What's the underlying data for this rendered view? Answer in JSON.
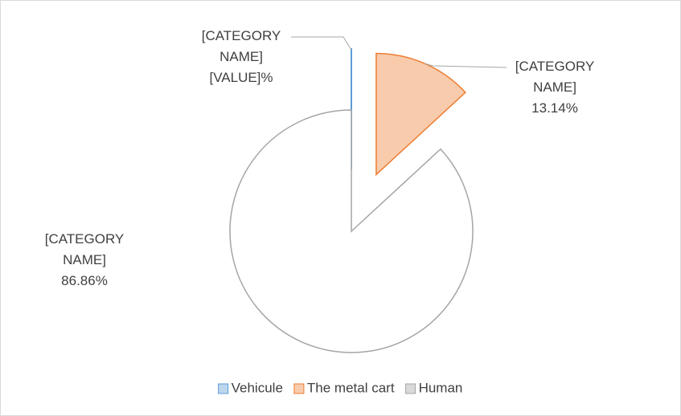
{
  "chart_data": {
    "type": "pie",
    "categories": [
      "Vehicule",
      "The metal cart",
      "Human"
    ],
    "values": [
      0,
      13.14,
      86.86
    ],
    "value_labels": [
      "[CATEGORY NAME] [VALUE]%",
      "[CATEGORY NAME] 13.14%",
      "[CATEGORY NAME] 86.86%"
    ],
    "colors": [
      "#bdd7ee",
      "#f8cbad",
      "#ffffff"
    ],
    "edgecolors": [
      "#5b9bd5",
      "#ed7d31",
      "#a5a5a5"
    ],
    "legend": "bottom"
  }
}
